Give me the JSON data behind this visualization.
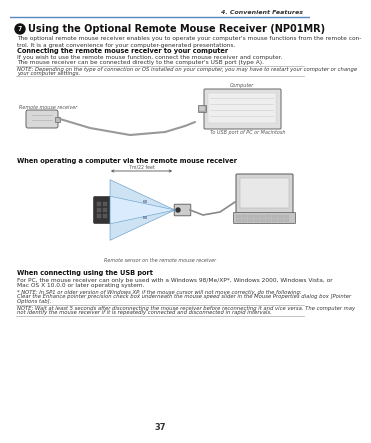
{
  "bg_color": "#ffffff",
  "header_line_color": "#5588bb",
  "header_text": "4. Convenient Features",
  "title_icon": "7",
  "title": "Using the Optional Remote Mouse Receiver (NP01MR)",
  "intro": "The optional remote mouse receiver enables you to operate your computer's mouse functions from the remote con-\ntrol. It is a great convenience for your computer-generated presentations.",
  "section1_head": "Connecting the remote mouse receiver to your computer",
  "section1_body1": "If you wish to use the remote mouse function, connect the mouse receiver and computer.",
  "section1_body2": "The mouse receiver can be connected directly to the computer's USB port (type A).",
  "note1_line1": "NOTE: Depending on the type of connection or OS installed on your computer, you may have to restart your computer or change",
  "note1_line2": "your computer settings.",
  "diagram1_label_left": "Remote mouse receiver",
  "diagram1_label_right": "Computer",
  "diagram1_label_usb": "To USB port of PC or Macintosh",
  "section2_head": "When operating a computer via the remote mouse receiver",
  "diagram2_label1": "7m/22 feet",
  "diagram2_label2": "Remote sensor on the remote mouse receiver",
  "section3_head": "When connecting using the USB port",
  "section3_body1": "For PC, the mouse receiver can only be used with a Windows 98/Me/XP*, Windows 2000, Windows Vista, or",
  "section3_body2": "Mac OS X 10.0.0 or later operating system.",
  "footnote_line1": "* NOTE: In SP1 or older version of Windows XP, if the mouse cursor will not move correctly, do the following:",
  "footnote_line2": "Clear the Enhance pointer precision check box underneath the mouse speed slider in the Mouse Properties dialog box [Pointer",
  "footnote_line3": "Options tab].",
  "note2_line1": "NOTE: Wait at least 5 seconds after disconnecting the mouse receiver before reconnecting it and vice versa. The computer may",
  "note2_line2": "not identify the mouse receiver if it is repeatedly connected and disconnected in rapid intervals.",
  "page_number": "37",
  "cone_color": "#b8d8f0",
  "cone_edge_color": "#4488bb"
}
